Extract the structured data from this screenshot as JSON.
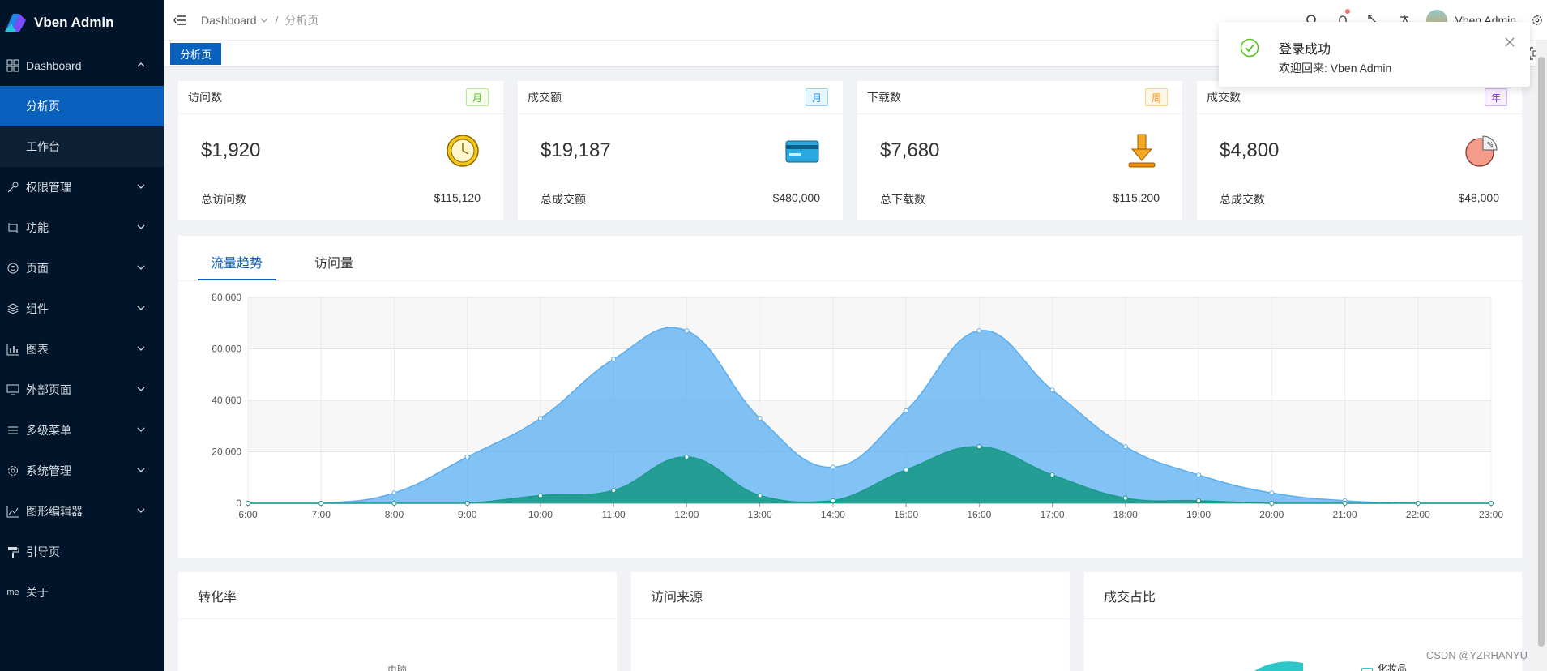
{
  "app": {
    "title": "Vben Admin"
  },
  "sidebar": {
    "items": [
      {
        "label": "Dashboard",
        "icon": "grid-icon",
        "expanded": true
      },
      {
        "label": "权限管理",
        "icon": "key-icon"
      },
      {
        "label": "功能",
        "icon": "swap-icon"
      },
      {
        "label": "页面",
        "icon": "settings-circle-icon"
      },
      {
        "label": "组件",
        "icon": "layers-icon"
      },
      {
        "label": "图表",
        "icon": "bar-chart-icon"
      },
      {
        "label": "外部页面",
        "icon": "monitor-icon"
      },
      {
        "label": "多级菜单",
        "icon": "list-icon"
      },
      {
        "label": "系统管理",
        "icon": "gear-icon"
      },
      {
        "label": "图形编辑器",
        "icon": "line-chart-icon"
      },
      {
        "label": "引导页",
        "icon": "paint-roller-icon"
      },
      {
        "label": "关于",
        "icon": "me-icon",
        "icon_text": "me"
      }
    ],
    "dashboard_children": [
      {
        "label": "分析页",
        "active": true
      },
      {
        "label": "工作台",
        "active": false
      }
    ]
  },
  "header": {
    "breadcrumb": [
      "Dashboard",
      "分析页"
    ],
    "username": "Vben Admin"
  },
  "tabs": {
    "active": "分析页"
  },
  "stats": [
    {
      "title": "访问数",
      "tag": "月",
      "tag_color": "#52c41a",
      "value": "$1,920",
      "foot_label": "总访问数",
      "foot_value": "$115,120",
      "icon": "clock-icon"
    },
    {
      "title": "成交额",
      "tag": "月",
      "tag_color": "#1890ff",
      "value": "$19,187",
      "foot_label": "总成交额",
      "foot_value": "$480,000",
      "icon": "credit-card-icon"
    },
    {
      "title": "下载数",
      "tag": "周",
      "tag_color": "#fa8c16",
      "value": "$7,680",
      "foot_label": "总下载数",
      "foot_value": "$115,200",
      "icon": "download-icon"
    },
    {
      "title": "成交数",
      "tag": "年",
      "tag_color": "#722ed1",
      "value": "$4,800",
      "foot_label": "总成交数",
      "foot_value": "$48,000",
      "icon": "pie-percent-icon"
    }
  ],
  "chart_tabs": [
    "流量趋势",
    "访问量"
  ],
  "chart_data": {
    "type": "area",
    "x": [
      "6:00",
      "7:00",
      "8:00",
      "9:00",
      "10:00",
      "11:00",
      "12:00",
      "13:00",
      "14:00",
      "15:00",
      "16:00",
      "17:00",
      "18:00",
      "19:00",
      "20:00",
      "21:00",
      "22:00",
      "23:00"
    ],
    "ylim": [
      0,
      80000
    ],
    "yticks": [
      "0",
      "20,000",
      "40,000",
      "60,000",
      "80,000"
    ],
    "series": [
      {
        "values": [
          0,
          0,
          4000,
          18000,
          33000,
          56000,
          67000,
          33000,
          14000,
          36000,
          67000,
          44000,
          22000,
          11000,
          4000,
          1000,
          0,
          0
        ],
        "color": "#5aaef0"
      },
      {
        "values": [
          0,
          0,
          0,
          0,
          3000,
          5000,
          18000,
          3000,
          1000,
          13000,
          22000,
          11000,
          2000,
          1000,
          0,
          0,
          0,
          0
        ],
        "color": "#1a9a8a"
      }
    ]
  },
  "bottom_cards": [
    "转化率",
    "访问来源",
    "成交占比"
  ],
  "bottom_partial": {
    "left": "电脑",
    "right": "化妆品"
  },
  "notification": {
    "title": "登录成功",
    "description": "欢迎回来: Vben Admin"
  },
  "watermark": "CSDN @YZRHANYU"
}
